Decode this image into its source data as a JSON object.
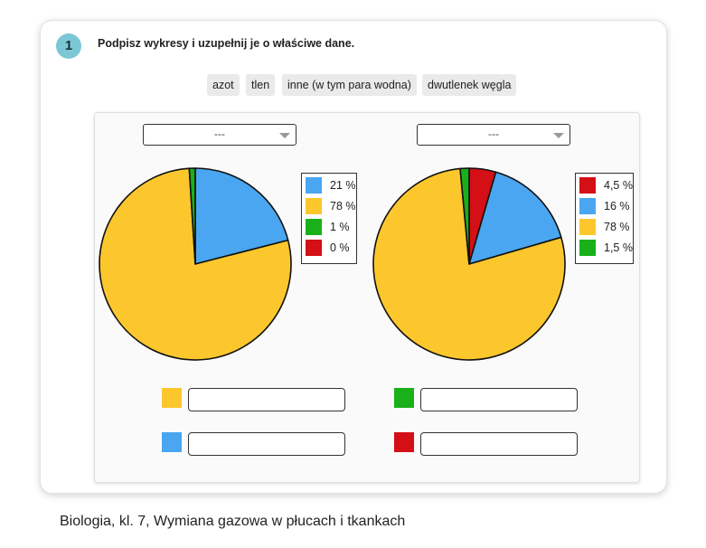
{
  "exercise": {
    "number": "1",
    "instruction": "Podpisz wykresy i uzupełnij je o właściwe dane.",
    "word_bank": [
      "azot",
      "tlen",
      "inne (w tym para wodna)",
      "dwutlenek węgla"
    ]
  },
  "selects": {
    "left_value": "---",
    "right_value": "---"
  },
  "colors": {
    "yellow": "#fcc72d",
    "blue": "#4aa6f0",
    "green": "#19b019",
    "red": "#d40f15"
  },
  "chart_data": [
    {
      "type": "pie",
      "slices": [
        {
          "label": "21 %",
          "value": 21,
          "color": "#4aa6f0"
        },
        {
          "label": "78 %",
          "value": 78,
          "color": "#fcc72d"
        },
        {
          "label": "1 %",
          "value": 1,
          "color": "#19b019"
        },
        {
          "label": "0 %",
          "value": 0,
          "color": "#d40f15"
        }
      ],
      "legend_position": "right"
    },
    {
      "type": "pie",
      "slices": [
        {
          "label": "4,5 %",
          "value": 4.5,
          "color": "#d40f15"
        },
        {
          "label": "16 %",
          "value": 16,
          "color": "#4aa6f0"
        },
        {
          "label": "78 %",
          "value": 78,
          "color": "#fcc72d"
        },
        {
          "label": "1,5 %",
          "value": 1.5,
          "color": "#19b019"
        }
      ],
      "legend_position": "right"
    }
  ],
  "answer_fields": [
    {
      "color": "#fcc72d",
      "value": ""
    },
    {
      "color": "#19b019",
      "value": ""
    },
    {
      "color": "#4aa6f0",
      "value": ""
    },
    {
      "color": "#d40f15",
      "value": ""
    }
  ],
  "caption": "Biologia, kl. 7, Wymiana gazowa w płucach i tkankach"
}
